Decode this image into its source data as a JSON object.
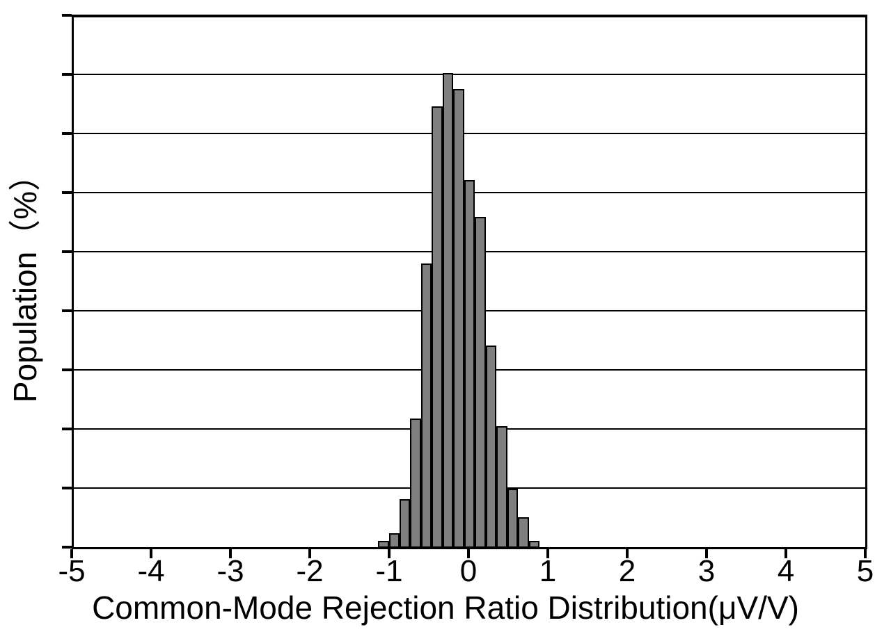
{
  "figure": {
    "background_color": "#ffffff",
    "axis_color": "#000000"
  },
  "chart_data": {
    "type": "bar",
    "subtype": "histogram",
    "title": "",
    "xlabel": "Common-Mode Rejection Ratio Distribution(μV/V)",
    "ylabel": "Population（%）",
    "xlim": [
      -5,
      5
    ],
    "x_ticks": [
      -5,
      -4,
      -3,
      -2,
      -1,
      0,
      1,
      2,
      3,
      4,
      5
    ],
    "x_tick_labels": [
      "-5",
      "-4",
      "-3",
      "-2",
      "-1",
      "0",
      "1",
      "2",
      "3",
      "4",
      "5"
    ],
    "y_axis": {
      "tick_labels_visible": false,
      "num_grid_divisions": 9
    },
    "grid": "horizontal",
    "legend": "none",
    "bar_fill_color": "#7f7f7f",
    "bar_border_color": "#000000",
    "bin_width": 0.136,
    "bin_left_edges": [
      -1.14,
      -1.004,
      -0.869,
      -0.733,
      -0.597,
      -0.461,
      -0.326,
      -0.19,
      -0.054,
      0.081,
      0.217,
      0.353,
      0.489,
      0.624,
      0.76
    ],
    "bin_centers": [
      -1.07,
      -0.94,
      -0.8,
      -0.66,
      -0.53,
      -0.39,
      -0.26,
      -0.12,
      0.01,
      0.15,
      0.28,
      0.42,
      0.56,
      0.69,
      0.83
    ],
    "heights_grid_divisions": [
      0.11,
      0.24,
      0.81,
      2.18,
      4.8,
      7.46,
      8.02,
      7.75,
      6.21,
      5.59,
      3.41,
      2.05,
      0.99,
      0.51,
      0.11
    ],
    "heights_percent_estimated": [
      0.22,
      0.48,
      1.61,
      4.34,
      9.56,
      14.85,
      15.97,
      15.43,
      12.36,
      11.13,
      6.79,
      4.08,
      1.97,
      1.02,
      0.22
    ]
  }
}
